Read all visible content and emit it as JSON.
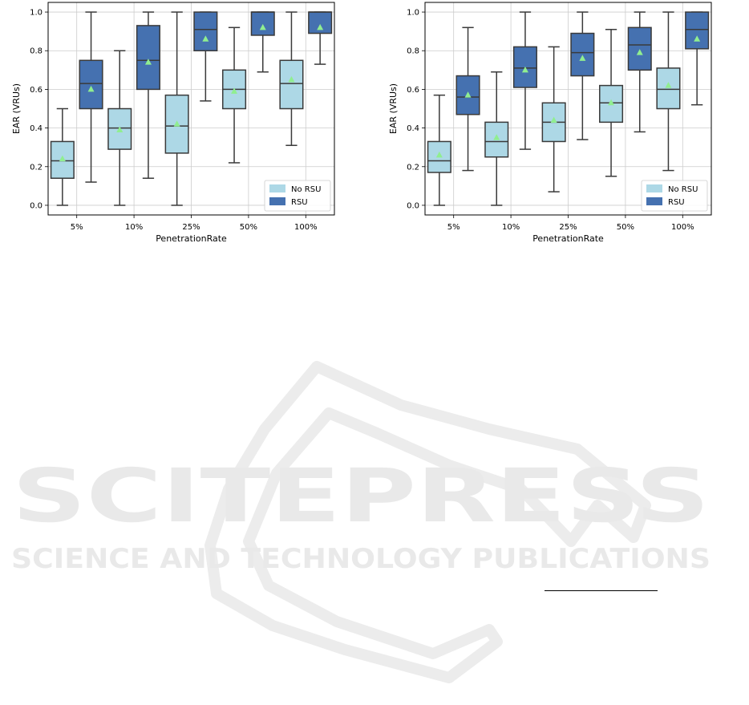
{
  "colors": {
    "no_rsu": "#add8e6",
    "rsu": "#4571b0",
    "mean_marker": "#90ee90",
    "box_edge": "#3a3a3a",
    "grid": "#cccccc"
  },
  "chart_data": [
    {
      "type": "box",
      "xlabel": "PenetrationRate",
      "ylabel": "EAR (VRUs)",
      "categories": [
        "5%",
        "10%",
        "25%",
        "50%",
        "100%"
      ],
      "yticks": [
        0.0,
        0.2,
        0.4,
        0.6,
        0.8,
        1.0
      ],
      "ylim": [
        -0.05,
        1.05
      ],
      "grid": true,
      "legend_position": "lower-right",
      "series": [
        {
          "name": "No RSU",
          "boxes": [
            {
              "min": 0.0,
              "q1": 0.14,
              "median": 0.23,
              "q3": 0.33,
              "max": 0.5,
              "mean": 0.24
            },
            {
              "min": 0.0,
              "q1": 0.29,
              "median": 0.4,
              "q3": 0.5,
              "max": 0.8,
              "mean": 0.39
            },
            {
              "min": 0.0,
              "q1": 0.27,
              "median": 0.41,
              "q3": 0.57,
              "max": 1.0,
              "mean": 0.42
            },
            {
              "min": 0.22,
              "q1": 0.5,
              "median": 0.6,
              "q3": 0.7,
              "max": 0.92,
              "mean": 0.59
            },
            {
              "min": 0.31,
              "q1": 0.5,
              "median": 0.63,
              "q3": 0.75,
              "max": 1.0,
              "mean": 0.65
            }
          ]
        },
        {
          "name": "RSU",
          "boxes": [
            {
              "min": 0.12,
              "q1": 0.5,
              "median": 0.63,
              "q3": 0.75,
              "max": 1.0,
              "mean": 0.6
            },
            {
              "min": 0.14,
              "q1": 0.6,
              "median": 0.75,
              "q3": 0.93,
              "max": 1.0,
              "mean": 0.74
            },
            {
              "min": 0.54,
              "q1": 0.8,
              "median": 0.91,
              "q3": 1.0,
              "max": 1.0,
              "mean": 0.86
            },
            {
              "min": 0.69,
              "q1": 0.88,
              "median": 1.0,
              "q3": 1.0,
              "max": 1.0,
              "mean": 0.92
            },
            {
              "min": 0.73,
              "q1": 0.89,
              "median": 1.0,
              "q3": 1.0,
              "max": 1.0,
              "mean": 0.92
            }
          ]
        }
      ]
    },
    {
      "type": "box",
      "xlabel": "PenetrationRate",
      "ylabel": "EAR (VRUs)",
      "categories": [
        "5%",
        "10%",
        "25%",
        "50%",
        "100%"
      ],
      "yticks": [
        0.0,
        0.2,
        0.4,
        0.6,
        0.8,
        1.0
      ],
      "ylim": [
        -0.05,
        1.05
      ],
      "grid": true,
      "legend_position": "lower-right",
      "series": [
        {
          "name": "No RSU",
          "boxes": [
            {
              "min": 0.0,
              "q1": 0.17,
              "median": 0.23,
              "q3": 0.33,
              "max": 0.57,
              "mean": 0.26
            },
            {
              "min": 0.0,
              "q1": 0.25,
              "median": 0.33,
              "q3": 0.43,
              "max": 0.69,
              "mean": 0.35
            },
            {
              "min": 0.07,
              "q1": 0.33,
              "median": 0.43,
              "q3": 0.53,
              "max": 0.82,
              "mean": 0.44
            },
            {
              "min": 0.15,
              "q1": 0.43,
              "median": 0.53,
              "q3": 0.62,
              "max": 0.91,
              "mean": 0.53
            },
            {
              "min": 0.18,
              "q1": 0.5,
              "median": 0.6,
              "q3": 0.71,
              "max": 1.0,
              "mean": 0.62
            }
          ]
        },
        {
          "name": "RSU",
          "boxes": [
            {
              "min": 0.18,
              "q1": 0.47,
              "median": 0.56,
              "q3": 0.67,
              "max": 0.92,
              "mean": 0.57
            },
            {
              "min": 0.29,
              "q1": 0.61,
              "median": 0.71,
              "q3": 0.82,
              "max": 1.0,
              "mean": 0.7
            },
            {
              "min": 0.34,
              "q1": 0.67,
              "median": 0.79,
              "q3": 0.89,
              "max": 1.0,
              "mean": 0.76
            },
            {
              "min": 0.38,
              "q1": 0.7,
              "median": 0.83,
              "q3": 0.92,
              "max": 1.0,
              "mean": 0.79
            },
            {
              "min": 0.52,
              "q1": 0.81,
              "median": 0.91,
              "q3": 1.0,
              "max": 1.0,
              "mean": 0.86
            }
          ]
        }
      ]
    }
  ],
  "watermark": {
    "title": "SCITEPRESS",
    "subtitle": "SCIENCE AND TECHNOLOGY PUBLICATIONS"
  }
}
